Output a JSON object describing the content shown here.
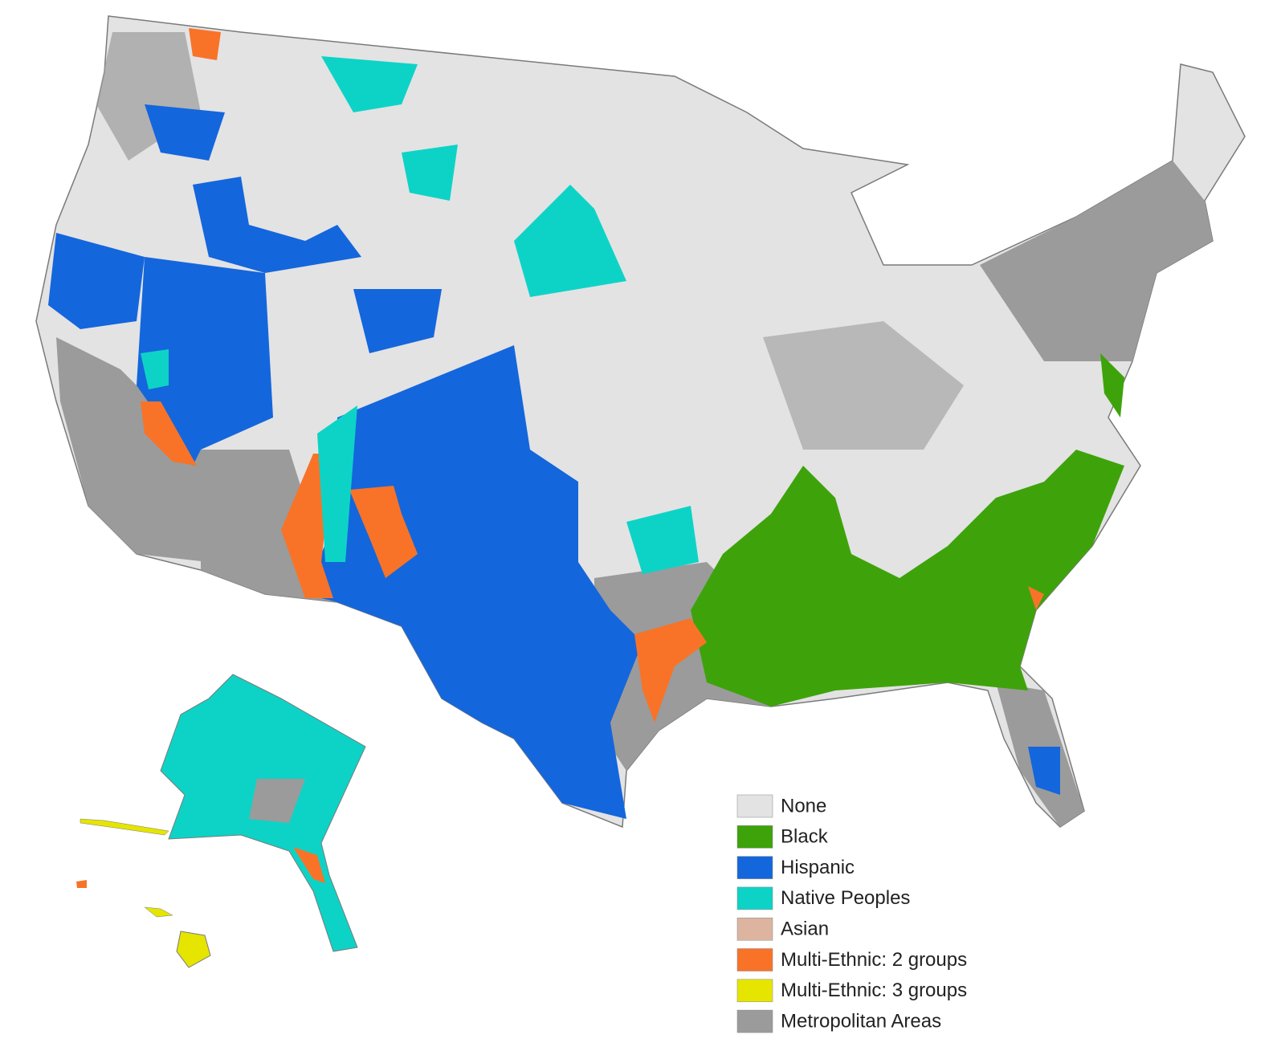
{
  "legend": {
    "items": [
      {
        "label": "None",
        "color": "#e3e3e3"
      },
      {
        "label": "Black",
        "color": "#3ea30a"
      },
      {
        "label": "Hispanic",
        "color": "#1466dc"
      },
      {
        "label": "Native Peoples",
        "color": "#0dd3c7"
      },
      {
        "label": "Asian",
        "color": "#dcb4a0"
      },
      {
        "label": "Multi-Ethnic: 2 groups",
        "color": "#f87328"
      },
      {
        "label": "Multi-Ethnic: 3 groups",
        "color": "#e5e500"
      },
      {
        "label": "Metropolitan Areas",
        "color": "#9b9b9b"
      }
    ]
  }
}
